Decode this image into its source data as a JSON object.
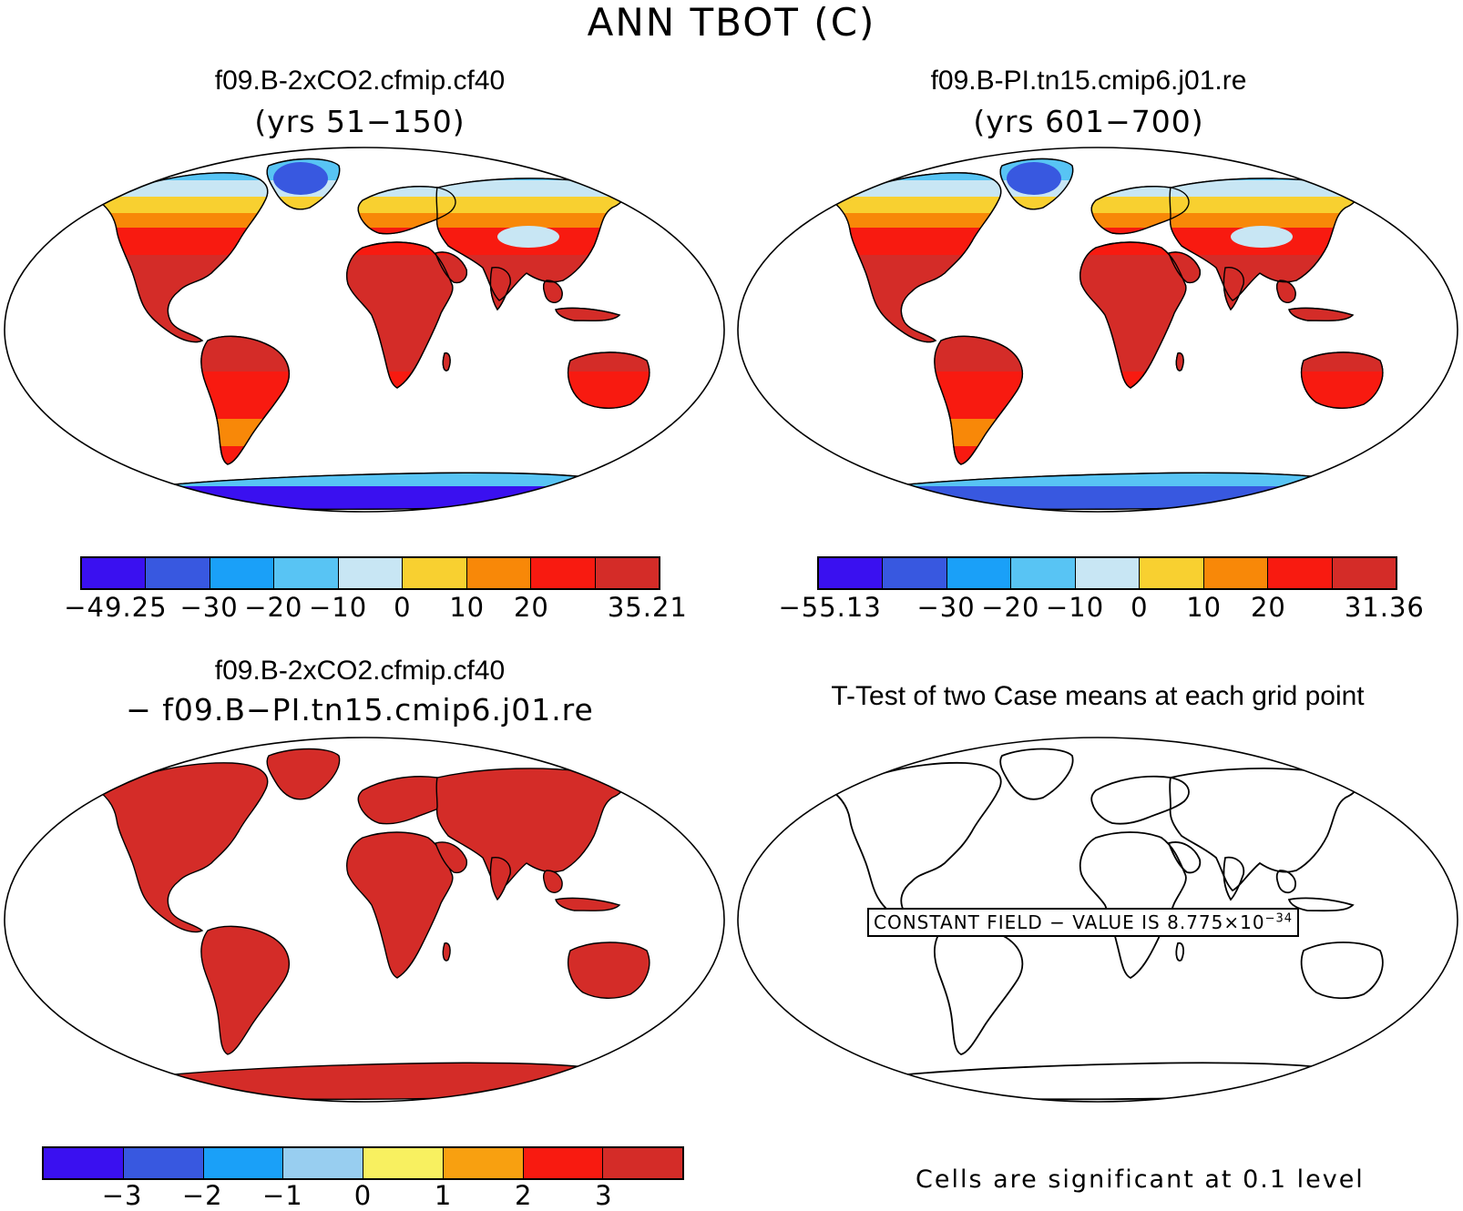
{
  "title": "ANN TBOT (C)",
  "panels": {
    "top_left": {
      "title": "f09.B-2xCO2.cfmip.cf40",
      "subtitle": "(yrs 51−150)"
    },
    "top_right": {
      "title": "f09.B-PI.tn15.cmip6.j01.re",
      "subtitle": "(yrs 601−700)"
    },
    "bottom_left": {
      "title": "f09.B-2xCO2.cfmip.cf40",
      "subtitle": "− f09.B−PI.tn15.cmip6.j01.re"
    },
    "bottom_right": {
      "title": "T-Test of two Case means at each grid point",
      "constant_label": "CONSTANT FIELD − VALUE IS 8.775×10",
      "constant_exp": "−34",
      "note": "Cells are significant at 0.1 level"
    }
  },
  "colorbars": {
    "top_left": {
      "colors": [
        "#3a10f0",
        "#3858e0",
        "#1aa0f8",
        "#58c4f4",
        "#c8e6f4",
        "#f8d030",
        "#f88808",
        "#f81a10",
        "#d42c28"
      ],
      "labels": [
        "−49.25",
        "−30",
        "−20",
        "−10",
        "0",
        "10",
        "20",
        "35.21"
      ]
    },
    "top_right": {
      "colors": [
        "#3a10f0",
        "#3858e0",
        "#1aa0f8",
        "#58c4f4",
        "#c8e6f4",
        "#f8d030",
        "#f88808",
        "#f81a10",
        "#d42c28"
      ],
      "labels": [
        "−55.13",
        "−30",
        "−20",
        "−10",
        "0",
        "10",
        "20",
        "31.36"
      ]
    },
    "bottom": {
      "colors": [
        "#3a10f0",
        "#3858e0",
        "#1aa0f8",
        "#98cef0",
        "#f8f060",
        "#f8a010",
        "#f81a10",
        "#d42c28"
      ],
      "labels": [
        "−3",
        "−2",
        "−1",
        "0",
        "1",
        "2",
        "3"
      ]
    }
  },
  "map_colors": {
    "ocean": "#ffffff",
    "hot": "#d42c28",
    "warm": "#f81a10",
    "mild": "#f88808",
    "cool": "#f8d030",
    "cold": "#c8e6f4",
    "colder": "#58c4f4",
    "frigid": "#3858e0",
    "polar": "#3a10f0",
    "diff": "#d42c28"
  }
}
